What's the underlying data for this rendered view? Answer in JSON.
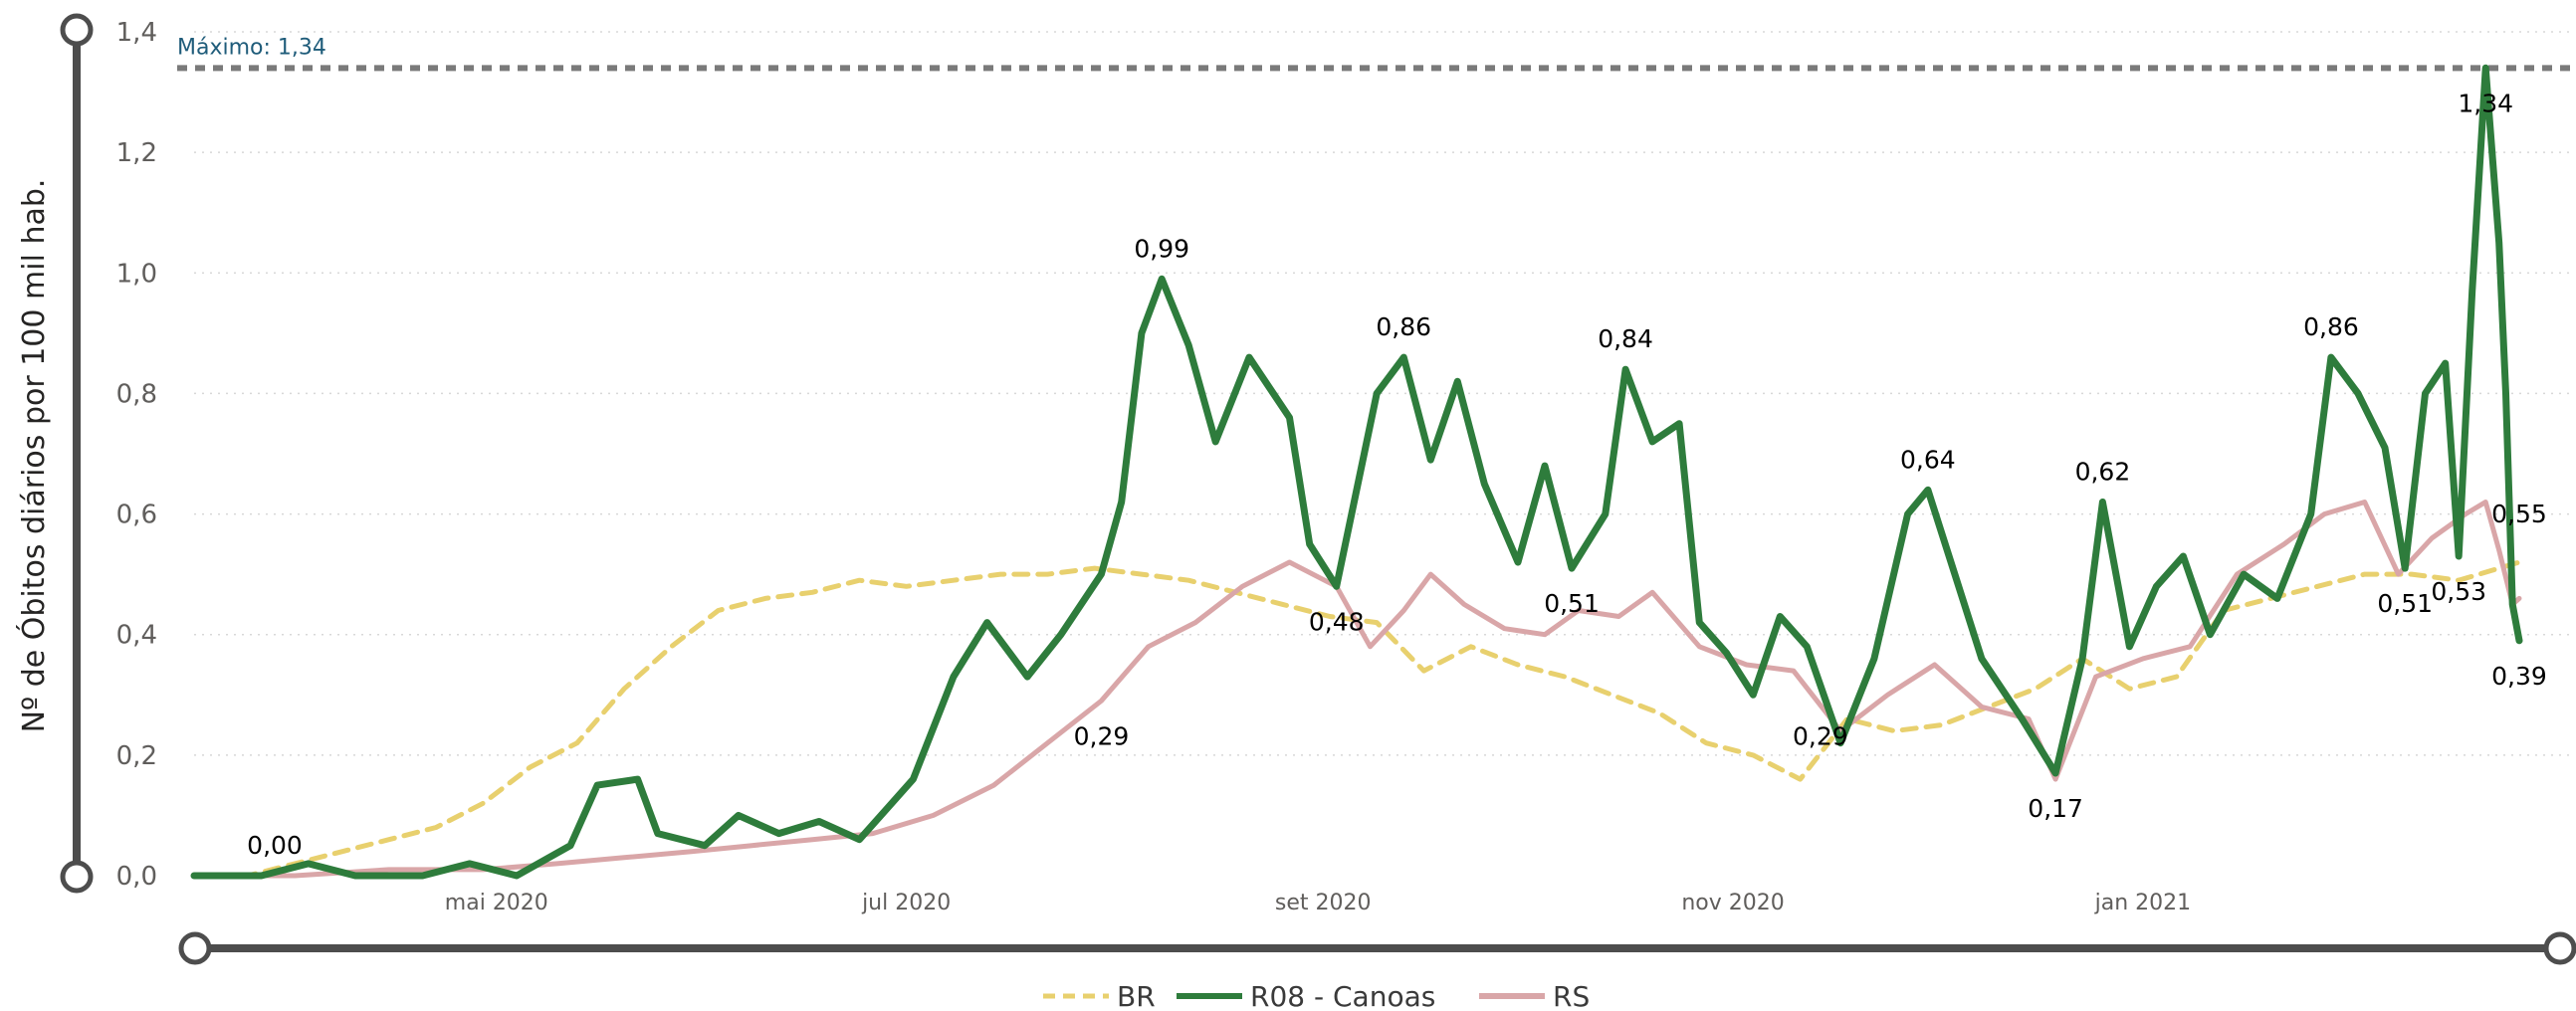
{
  "chart_data": {
    "type": "line",
    "ylabel": "Nº de Óbitos diários por 100 mil hab.",
    "xlabel": "",
    "ylim": [
      0,
      1.4
    ],
    "y_ticks": [
      "0,0",
      "0,2",
      "0,4",
      "0,6",
      "0,8",
      "1,0",
      "1,2",
      "1,4"
    ],
    "y_tick_values": [
      0,
      0.2,
      0.4,
      0.6,
      0.8,
      1.0,
      1.2,
      1.4
    ],
    "x_range": [
      "2020-03-17",
      "2021-02-26"
    ],
    "x_ticks": [
      {
        "label": "mai 2020",
        "date": "2020-05-01"
      },
      {
        "label": "jul 2020",
        "date": "2020-07-01"
      },
      {
        "label": "set 2020",
        "date": "2020-09-01"
      },
      {
        "label": "nov 2020",
        "date": "2020-11-01"
      },
      {
        "label": "jan 2021",
        "date": "2021-01-01"
      }
    ],
    "grid": true,
    "legend": "bottom-center",
    "reference_line": {
      "label": "Máximo: 1,34",
      "value": 1.34,
      "color": "#7a7a7a"
    },
    "series": [
      {
        "name": "BR",
        "color": "#e8d06e",
        "dash": true,
        "points": [
          [
            "2020-03-17",
            0.0
          ],
          [
            "2020-03-25",
            0.0
          ],
          [
            "2020-04-01",
            0.02
          ],
          [
            "2020-04-08",
            0.04
          ],
          [
            "2020-04-15",
            0.06
          ],
          [
            "2020-04-22",
            0.08
          ],
          [
            "2020-04-29",
            0.12
          ],
          [
            "2020-05-06",
            0.18
          ],
          [
            "2020-05-13",
            0.22
          ],
          [
            "2020-05-20",
            0.31
          ],
          [
            "2020-05-27",
            0.38
          ],
          [
            "2020-06-03",
            0.44
          ],
          [
            "2020-06-10",
            0.46
          ],
          [
            "2020-06-17",
            0.47
          ],
          [
            "2020-06-24",
            0.49
          ],
          [
            "2020-07-01",
            0.48
          ],
          [
            "2020-07-08",
            0.49
          ],
          [
            "2020-07-15",
            0.5
          ],
          [
            "2020-07-22",
            0.5
          ],
          [
            "2020-07-29",
            0.51
          ],
          [
            "2020-08-05",
            0.5
          ],
          [
            "2020-08-12",
            0.49
          ],
          [
            "2020-08-19",
            0.47
          ],
          [
            "2020-08-26",
            0.45
          ],
          [
            "2020-09-02",
            0.43
          ],
          [
            "2020-09-09",
            0.42
          ],
          [
            "2020-09-16",
            0.34
          ],
          [
            "2020-09-23",
            0.38
          ],
          [
            "2020-09-30",
            0.35
          ],
          [
            "2020-10-07",
            0.33
          ],
          [
            "2020-10-14",
            0.3
          ],
          [
            "2020-10-21",
            0.27
          ],
          [
            "2020-10-28",
            0.22
          ],
          [
            "2020-11-04",
            0.2
          ],
          [
            "2020-11-11",
            0.16
          ],
          [
            "2020-11-18",
            0.26
          ],
          [
            "2020-11-25",
            0.24
          ],
          [
            "2020-12-02",
            0.25
          ],
          [
            "2020-12-09",
            0.28
          ],
          [
            "2020-12-16",
            0.31
          ],
          [
            "2020-12-23",
            0.36
          ],
          [
            "2020-12-30",
            0.31
          ],
          [
            "2021-01-06",
            0.33
          ],
          [
            "2021-01-13",
            0.44
          ],
          [
            "2021-01-20",
            0.46
          ],
          [
            "2021-01-27",
            0.48
          ],
          [
            "2021-02-03",
            0.5
          ],
          [
            "2021-02-10",
            0.5
          ],
          [
            "2021-02-17",
            0.49
          ],
          [
            "2021-02-26",
            0.52
          ]
        ]
      },
      {
        "name": "R08 - Canoas",
        "color": "#2e7c3c",
        "dash": false,
        "points": [
          [
            "2020-03-17",
            0.0
          ],
          [
            "2020-03-27",
            0.0
          ],
          [
            "2020-04-03",
            0.02
          ],
          [
            "2020-04-10",
            0.0
          ],
          [
            "2020-04-20",
            0.0
          ],
          [
            "2020-04-27",
            0.02
          ],
          [
            "2020-05-04",
            0.0
          ],
          [
            "2020-05-12",
            0.05
          ],
          [
            "2020-05-16",
            0.15
          ],
          [
            "2020-05-22",
            0.16
          ],
          [
            "2020-05-25",
            0.07
          ],
          [
            "2020-06-01",
            0.05
          ],
          [
            "2020-06-06",
            0.1
          ],
          [
            "2020-06-12",
            0.07
          ],
          [
            "2020-06-18",
            0.09
          ],
          [
            "2020-06-24",
            0.06
          ],
          [
            "2020-07-02",
            0.16
          ],
          [
            "2020-07-08",
            0.33
          ],
          [
            "2020-07-13",
            0.42
          ],
          [
            "2020-07-19",
            0.33
          ],
          [
            "2020-07-24",
            0.4
          ],
          [
            "2020-07-30",
            0.5
          ],
          [
            "2020-08-02",
            0.62
          ],
          [
            "2020-08-05",
            0.9
          ],
          [
            "2020-08-08",
            0.99
          ],
          [
            "2020-08-12",
            0.88
          ],
          [
            "2020-08-16",
            0.72
          ],
          [
            "2020-08-21",
            0.86
          ],
          [
            "2020-08-27",
            0.76
          ],
          [
            "2020-08-30",
            0.55
          ],
          [
            "2020-09-03",
            0.48
          ],
          [
            "2020-09-09",
            0.8
          ],
          [
            "2020-09-13",
            0.86
          ],
          [
            "2020-09-17",
            0.69
          ],
          [
            "2020-09-21",
            0.82
          ],
          [
            "2020-09-25",
            0.65
          ],
          [
            "2020-09-30",
            0.52
          ],
          [
            "2020-10-04",
            0.68
          ],
          [
            "2020-10-08",
            0.51
          ],
          [
            "2020-10-13",
            0.6
          ],
          [
            "2020-10-16",
            0.84
          ],
          [
            "2020-10-20",
            0.72
          ],
          [
            "2020-10-24",
            0.75
          ],
          [
            "2020-10-27",
            0.42
          ],
          [
            "2020-10-31",
            0.37
          ],
          [
            "2020-11-04",
            0.3
          ],
          [
            "2020-11-08",
            0.43
          ],
          [
            "2020-11-12",
            0.38
          ],
          [
            "2020-11-17",
            0.22
          ],
          [
            "2020-11-22",
            0.36
          ],
          [
            "2020-11-27",
            0.6
          ],
          [
            "2020-11-30",
            0.64
          ],
          [
            "2020-12-04",
            0.5
          ],
          [
            "2020-12-08",
            0.36
          ],
          [
            "2020-12-14",
            0.26
          ],
          [
            "2020-12-19",
            0.17
          ],
          [
            "2020-12-23",
            0.36
          ],
          [
            "2020-12-26",
            0.62
          ],
          [
            "2020-12-30",
            0.38
          ],
          [
            "2021-01-03",
            0.48
          ],
          [
            "2021-01-07",
            0.53
          ],
          [
            "2021-01-11",
            0.4
          ],
          [
            "2021-01-16",
            0.5
          ],
          [
            "2021-01-21",
            0.46
          ],
          [
            "2021-01-26",
            0.6
          ],
          [
            "2021-01-29",
            0.86
          ],
          [
            "2021-02-02",
            0.8
          ],
          [
            "2021-02-06",
            0.71
          ],
          [
            "2021-02-09",
            0.51
          ],
          [
            "2021-02-12",
            0.8
          ],
          [
            "2021-02-15",
            0.85
          ],
          [
            "2021-02-17",
            0.53
          ],
          [
            "2021-02-19",
            0.97
          ],
          [
            "2021-02-21",
            1.34
          ],
          [
            "2021-02-23",
            1.05
          ],
          [
            "2021-02-24",
            0.8
          ],
          [
            "2021-02-25",
            0.45
          ],
          [
            "2021-02-26",
            0.39
          ]
        ]
      },
      {
        "name": "RS",
        "color": "#d9a6a8",
        "dash": false,
        "points": [
          [
            "2020-03-17",
            0.0
          ],
          [
            "2020-04-01",
            0.0
          ],
          [
            "2020-04-15",
            0.01
          ],
          [
            "2020-04-29",
            0.01
          ],
          [
            "2020-05-10",
            0.02
          ],
          [
            "2020-05-20",
            0.03
          ],
          [
            "2020-05-30",
            0.04
          ],
          [
            "2020-06-08",
            0.05
          ],
          [
            "2020-06-17",
            0.06
          ],
          [
            "2020-06-26",
            0.07
          ],
          [
            "2020-07-05",
            0.1
          ],
          [
            "2020-07-14",
            0.15
          ],
          [
            "2020-07-22",
            0.22
          ],
          [
            "2020-07-30",
            0.29
          ],
          [
            "2020-08-06",
            0.38
          ],
          [
            "2020-08-13",
            0.42
          ],
          [
            "2020-08-20",
            0.48
          ],
          [
            "2020-08-27",
            0.52
          ],
          [
            "2020-09-03",
            0.48
          ],
          [
            "2020-09-08",
            0.38
          ],
          [
            "2020-09-13",
            0.44
          ],
          [
            "2020-09-17",
            0.5
          ],
          [
            "2020-09-22",
            0.45
          ],
          [
            "2020-09-28",
            0.41
          ],
          [
            "2020-10-04",
            0.4
          ],
          [
            "2020-10-09",
            0.44
          ],
          [
            "2020-10-15",
            0.43
          ],
          [
            "2020-10-20",
            0.47
          ],
          [
            "2020-10-27",
            0.38
          ],
          [
            "2020-11-03",
            0.35
          ],
          [
            "2020-11-10",
            0.34
          ],
          [
            "2020-11-17",
            0.24
          ],
          [
            "2020-11-24",
            0.3
          ],
          [
            "2020-12-01",
            0.35
          ],
          [
            "2020-12-08",
            0.28
          ],
          [
            "2020-12-15",
            0.26
          ],
          [
            "2020-12-19",
            0.16
          ],
          [
            "2020-12-25",
            0.33
          ],
          [
            "2021-01-01",
            0.36
          ],
          [
            "2021-01-08",
            0.38
          ],
          [
            "2021-01-15",
            0.5
          ],
          [
            "2021-01-22",
            0.55
          ],
          [
            "2021-01-28",
            0.6
          ],
          [
            "2021-02-03",
            0.62
          ],
          [
            "2021-02-08",
            0.5
          ],
          [
            "2021-02-13",
            0.56
          ],
          [
            "2021-02-18",
            0.6
          ],
          [
            "2021-02-21",
            0.62
          ],
          [
            "2021-02-23",
            0.54
          ],
          [
            "2021-02-25",
            0.45
          ],
          [
            "2021-02-26",
            0.46
          ]
        ]
      }
    ],
    "data_labels": [
      {
        "text": "0,00",
        "date": "2020-03-29",
        "value": 0.0,
        "offset": "above"
      },
      {
        "text": "0,29",
        "date": "2020-07-30",
        "value": 0.29,
        "offset": "below"
      },
      {
        "text": "0,99",
        "date": "2020-08-08",
        "value": 0.99,
        "offset": "above"
      },
      {
        "text": "0,48",
        "date": "2020-09-03",
        "value": 0.48,
        "offset": "below"
      },
      {
        "text": "0,86",
        "date": "2020-09-13",
        "value": 0.86,
        "offset": "above"
      },
      {
        "text": "0,51",
        "date": "2020-10-08",
        "value": 0.51,
        "offset": "below"
      },
      {
        "text": "0,84",
        "date": "2020-10-16",
        "value": 0.84,
        "offset": "above"
      },
      {
        "text": "0,29",
        "date": "2020-11-14",
        "value": 0.29,
        "offset": "below"
      },
      {
        "text": "0,64",
        "date": "2020-11-30",
        "value": 0.64,
        "offset": "above"
      },
      {
        "text": "0,17",
        "date": "2020-12-19",
        "value": 0.17,
        "offset": "below"
      },
      {
        "text": "0,62",
        "date": "2020-12-26",
        "value": 0.62,
        "offset": "above"
      },
      {
        "text": "0,86",
        "date": "2021-01-29",
        "value": 0.86,
        "offset": "above"
      },
      {
        "text": "0,51",
        "date": "2021-02-09",
        "value": 0.51,
        "offset": "below"
      },
      {
        "text": "0,53",
        "date": "2021-02-17",
        "value": 0.53,
        "offset": "below"
      },
      {
        "text": "1,34",
        "date": "2021-02-21",
        "value": 1.34,
        "offset": "below"
      },
      {
        "text": "0,39",
        "date": "2021-02-26",
        "value": 0.39,
        "offset": "below"
      },
      {
        "text": "0,55",
        "date": "2021-02-26",
        "value": 0.55,
        "offset": "above"
      }
    ]
  }
}
